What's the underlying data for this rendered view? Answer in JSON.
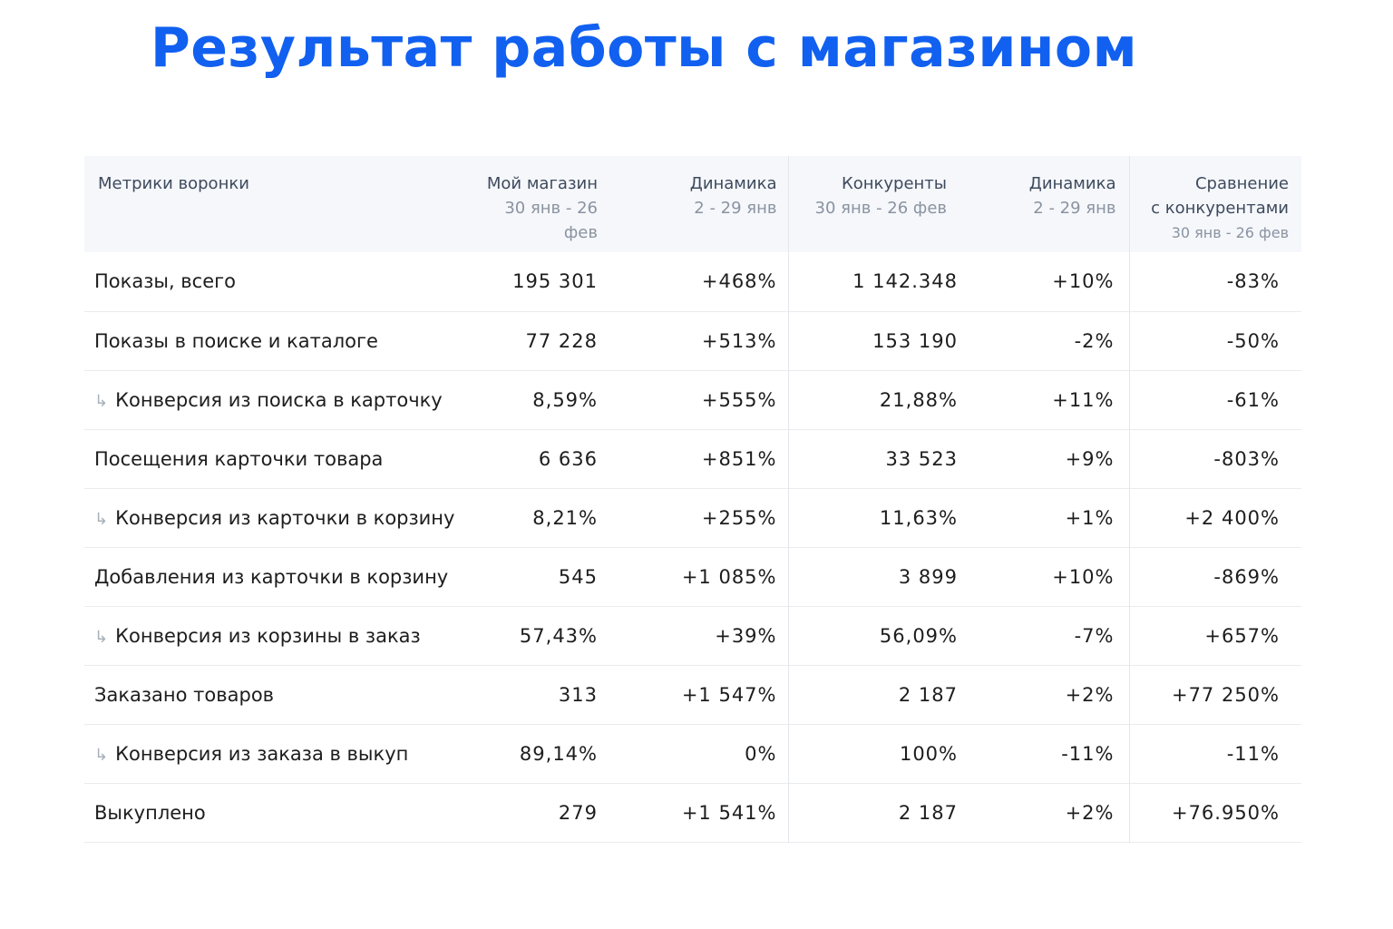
{
  "title": "Результат работы с магазином",
  "header": {
    "metrics": "Метрики воронки",
    "my_store": "Мой магазин",
    "my_store_period": "30 янв - 26 фев",
    "dynamics1": "Динамика",
    "dynamics1_period": "2 - 29 янв",
    "competitors": "Конкуренты",
    "competitors_period": "30 янв - 26 фев",
    "dynamics2": "Динамика",
    "dynamics2_period": "2 - 29 янв",
    "comparison_line1": "Сравнение",
    "comparison_line2": "с конкурентами",
    "comparison_period": "30 янв - 26 фев"
  },
  "rows": [
    {
      "metric": "Показы, всего",
      "sub": false,
      "my": "195 301",
      "dyn1": "+468%",
      "dyn1_tone": "pos",
      "comp": "1 142.348",
      "dyn2": "+10%",
      "dyn2_tone": "pos",
      "cmp": "-83%",
      "cmp_tone": "neg"
    },
    {
      "metric": "Показы в поиске и каталоге",
      "sub": false,
      "my": "77 228",
      "dyn1": "+513%",
      "dyn1_tone": "pos",
      "comp": "153 190",
      "dyn2": "-2%",
      "dyn2_tone": "neg",
      "cmp": "-50%",
      "cmp_tone": "neg"
    },
    {
      "metric": "Конверсия из поиска в карточку",
      "sub": true,
      "my": "8,59%",
      "dyn1": "+555%",
      "dyn1_tone": "pos",
      "comp": "21,88%",
      "dyn2": "+11%",
      "dyn2_tone": "pos",
      "cmp": "-61%",
      "cmp_tone": "neg"
    },
    {
      "metric": "Посещения карточки товара",
      "sub": false,
      "my": "6 636",
      "dyn1": "+851%",
      "dyn1_tone": "pos",
      "comp": "33 523",
      "dyn2": "+9%",
      "dyn2_tone": "pos",
      "cmp": "-803%",
      "cmp_tone": "neg"
    },
    {
      "metric": "Конверсия из карточки в корзину",
      "sub": true,
      "my": "8,21%",
      "dyn1": "+255%",
      "dyn1_tone": "pos",
      "comp": "11,63%",
      "dyn2": "+1%",
      "dyn2_tone": "pos",
      "cmp": "+2 400%",
      "cmp_tone": "pos"
    },
    {
      "metric": "Добавления из карточки в корзину",
      "sub": false,
      "my": "545",
      "dyn1": "+1 085%",
      "dyn1_tone": "pos",
      "comp": "3 899",
      "dyn2": "+10%",
      "dyn2_tone": "pos",
      "cmp": "-869%",
      "cmp_tone": "neg"
    },
    {
      "metric": "Конверсия из корзины в заказ",
      "sub": true,
      "my": "57,43%",
      "dyn1": "+39%",
      "dyn1_tone": "pos",
      "comp": "56,09%",
      "dyn2": "-7%",
      "dyn2_tone": "neg",
      "cmp": "+657%",
      "cmp_tone": "pos"
    },
    {
      "metric": "Заказано товаров",
      "sub": false,
      "my": "313",
      "dyn1": "+1 547%",
      "dyn1_tone": "pos",
      "comp": "2 187",
      "dyn2": "+2%",
      "dyn2_tone": "pos",
      "cmp": "+77 250%",
      "cmp_tone": "pos"
    },
    {
      "metric": "Конверсия из заказа в выкуп",
      "sub": true,
      "my": "89,14%",
      "dyn1": "0%",
      "dyn1_tone": "neu",
      "comp": "100%",
      "dyn2": "-11%",
      "dyn2_tone": "neg",
      "cmp": "-11%",
      "cmp_tone": "neg"
    },
    {
      "metric": "Выкуплено",
      "sub": false,
      "my": "279",
      "dyn1": "+1 541%",
      "dyn1_tone": "pos",
      "comp": "2 187",
      "dyn2": "+2%",
      "dyn2_tone": "pos",
      "cmp": "+76.950%",
      "cmp_tone": "pos"
    }
  ],
  "colors": {
    "title": "#1160f0",
    "positive": "#1e9a5a",
    "negative": "#d04a36",
    "neutral": "#7c8490",
    "header_bg": "#f5f7fb"
  },
  "icons": {
    "sub_metric": "sub-arrow-icon"
  }
}
